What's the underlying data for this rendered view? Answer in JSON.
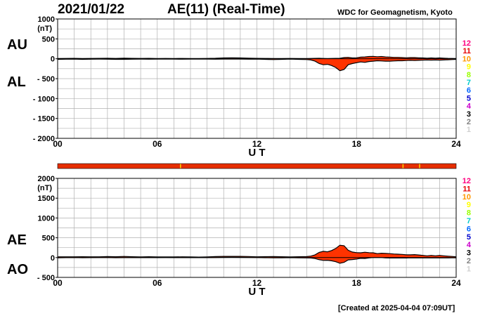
{
  "header": {
    "date": "2021/01/22",
    "title": "AE(11) (Real-Time)",
    "source": "WDC for Geomagnetism, Kyoto",
    "created": "[Created at 2025-04-04 07:09UT]"
  },
  "station_scale": {
    "labels": [
      "12",
      "11",
      "10",
      "9",
      "8",
      "7",
      "6",
      "5",
      "4",
      "3",
      "2",
      "1"
    ],
    "colors": [
      "#ff0080",
      "#e60000",
      "#ff9900",
      "#ffff00",
      "#99ff00",
      "#00cccc",
      "#0066ff",
      "#0000cc",
      "#cc00cc",
      "#000000",
      "#808080",
      "#d0d0d0"
    ]
  },
  "coverage_bar": {
    "color": "#e62e00",
    "marker_color": "#ffcc00",
    "marker_hours": [
      7.4,
      20.8,
      21.8
    ]
  },
  "colors": {
    "fill": "#ff3300",
    "line": "#000000",
    "grid": "#b0b0b0"
  },
  "chart_data": [
    {
      "type": "area",
      "name": "AU/AL panel",
      "series_labels": [
        "AU",
        "AL"
      ],
      "unit": "(nT)",
      "xlabel": "U T",
      "xlim": [
        0,
        24
      ],
      "xticks": [
        0,
        6,
        12,
        18,
        24
      ],
      "xtick_labels": [
        "00",
        "06",
        "12",
        "18",
        "24"
      ],
      "ylim": [
        -2000,
        1000
      ],
      "yticks": [
        1000,
        500,
        0,
        -500,
        -1000,
        -1500,
        -2000
      ],
      "ytick_labels": [
        "1000",
        "500",
        "0",
        "- 500",
        "- 1000",
        "- 1500",
        "- 2000"
      ],
      "grid": true,
      "x": [
        0,
        0.5,
        1,
        1.5,
        2,
        2.5,
        3,
        3.5,
        4,
        4.5,
        5,
        5.5,
        6,
        6.5,
        7,
        7.5,
        8,
        8.5,
        9,
        9.5,
        10,
        10.5,
        11,
        11.5,
        12,
        12.5,
        13,
        13.5,
        14,
        14.5,
        15,
        15.25,
        15.5,
        15.75,
        16,
        16.25,
        16.5,
        16.75,
        17,
        17.25,
        17.5,
        17.75,
        18,
        18.25,
        18.5,
        18.75,
        19,
        19.25,
        19.5,
        19.75,
        20,
        20.25,
        20.5,
        20.75,
        21,
        21.25,
        21.5,
        21.75,
        22,
        22.25,
        22.5,
        22.75,
        23,
        23.25,
        23.5,
        23.75,
        24
      ],
      "series": [
        {
          "name": "AU",
          "values": [
            5,
            8,
            10,
            6,
            8,
            10,
            12,
            8,
            14,
            10,
            8,
            10,
            6,
            8,
            6,
            8,
            6,
            5,
            8,
            12,
            20,
            22,
            20,
            15,
            10,
            8,
            6,
            6,
            8,
            6,
            5,
            8,
            10,
            12,
            8,
            6,
            8,
            10,
            12,
            30,
            35,
            20,
            25,
            40,
            45,
            55,
            60,
            50,
            55,
            45,
            40,
            35,
            35,
            30,
            25,
            30,
            30,
            25,
            20,
            15,
            20,
            15,
            20,
            15,
            10,
            8,
            5
          ]
        },
        {
          "name": "AL",
          "values": [
            -15,
            -12,
            -10,
            -15,
            -12,
            -10,
            -12,
            -14,
            -15,
            -12,
            -10,
            -12,
            -10,
            -8,
            -10,
            -12,
            -10,
            -8,
            -10,
            -12,
            -10,
            -8,
            -10,
            -12,
            -10,
            -15,
            -20,
            -15,
            -10,
            -15,
            -20,
            -30,
            -60,
            -120,
            -150,
            -140,
            -170,
            -220,
            -300,
            -270,
            -150,
            -120,
            -100,
            -80,
            -90,
            -70,
            -60,
            -50,
            -55,
            -60,
            -60,
            -55,
            -50,
            -50,
            -45,
            -40,
            -45,
            -40,
            -35,
            -30,
            -35,
            -30,
            -35,
            -30,
            -25,
            -20,
            -15
          ]
        }
      ]
    },
    {
      "type": "area",
      "name": "AE/AO panel",
      "series_labels": [
        "AE",
        "AO"
      ],
      "unit": "(nT)",
      "xlabel": "U T",
      "xlim": [
        0,
        24
      ],
      "xticks": [
        0,
        6,
        12,
        18,
        24
      ],
      "xtick_labels": [
        "00",
        "06",
        "12",
        "18",
        "24"
      ],
      "ylim": [
        -500,
        2000
      ],
      "yticks": [
        2000,
        1500,
        1000,
        500,
        0,
        -500
      ],
      "ytick_labels": [
        "2000",
        "1500",
        "1000",
        "500",
        "0",
        "- 500"
      ],
      "grid": true,
      "x": [
        0,
        0.5,
        1,
        1.5,
        2,
        2.5,
        3,
        3.5,
        4,
        4.5,
        5,
        5.5,
        6,
        6.5,
        7,
        7.5,
        8,
        8.5,
        9,
        9.5,
        10,
        10.5,
        11,
        11.5,
        12,
        12.5,
        13,
        13.5,
        14,
        14.5,
        15,
        15.25,
        15.5,
        15.75,
        16,
        16.25,
        16.5,
        16.75,
        17,
        17.25,
        17.5,
        17.75,
        18,
        18.25,
        18.5,
        18.75,
        19,
        19.25,
        19.5,
        19.75,
        20,
        20.25,
        20.5,
        20.75,
        21,
        21.25,
        21.5,
        21.75,
        22,
        22.25,
        22.5,
        22.75,
        23,
        23.25,
        23.5,
        23.75,
        24
      ],
      "series": [
        {
          "name": "AE",
          "values": [
            20,
            20,
            20,
            21,
            20,
            20,
            24,
            22,
            29,
            22,
            18,
            22,
            16,
            16,
            16,
            20,
            16,
            13,
            18,
            24,
            30,
            30,
            30,
            27,
            20,
            23,
            26,
            21,
            18,
            21,
            25,
            38,
            70,
            132,
            158,
            146,
            178,
            230,
            312,
            300,
            185,
            140,
            125,
            120,
            135,
            125,
            120,
            100,
            110,
            105,
            100,
            90,
            85,
            80,
            70,
            70,
            75,
            65,
            55,
            45,
            55,
            45,
            55,
            45,
            35,
            28,
            20
          ]
        },
        {
          "name": "AO",
          "values": [
            -5,
            -2,
            0,
            -4,
            -2,
            0,
            0,
            -3,
            -1,
            -1,
            -1,
            -1,
            -2,
            0,
            -2,
            -2,
            -2,
            -2,
            -1,
            0,
            5,
            7,
            5,
            2,
            0,
            -4,
            -7,
            -5,
            -1,
            -5,
            -8,
            -11,
            -25,
            -54,
            -71,
            -67,
            -81,
            -105,
            -144,
            -120,
            -58,
            -50,
            -38,
            -20,
            -23,
            -8,
            0,
            0,
            0,
            -8,
            -10,
            -10,
            -8,
            -10,
            -10,
            -5,
            -8,
            -8,
            -8,
            -8,
            -8,
            -8,
            -8,
            -8,
            -8,
            -6,
            -5
          ]
        }
      ]
    }
  ]
}
